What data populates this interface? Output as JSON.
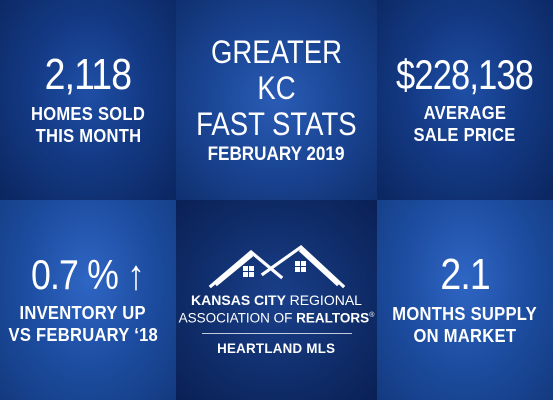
{
  "tiles": {
    "homes_sold": {
      "value": "2,118",
      "line1": "HOMES SOLD",
      "line2": "THIS MONTH"
    },
    "title": {
      "line1": "GREATER KC",
      "line2": "FAST STATS",
      "subtitle": "FEBRUARY 2019"
    },
    "avg_price": {
      "value": "$228,138",
      "line1": "AVERAGE",
      "line2": "SALE PRICE"
    },
    "inventory": {
      "value": "0.7 %",
      "arrow": "↑",
      "line1": "INVENTORY UP",
      "line2": "VS FEBRUARY ‘18"
    },
    "logo": {
      "org_bold": "KANSAS CITY",
      "org_regular": "REGIONAL",
      "assoc_regular": "ASSOCIATION OF",
      "assoc_bold": "REALTORS",
      "reg_mark": "®",
      "mls": "HEARTLAND MLS",
      "icon": "two-house-roofs-icon"
    },
    "supply": {
      "value": "2.1",
      "line1": "MONTHS SUPPLY",
      "line2": "ON MARKET"
    }
  },
  "colors": {
    "text": "#ffffff",
    "navy": "#0d2a6b",
    "blue": "#1d4da1"
  }
}
